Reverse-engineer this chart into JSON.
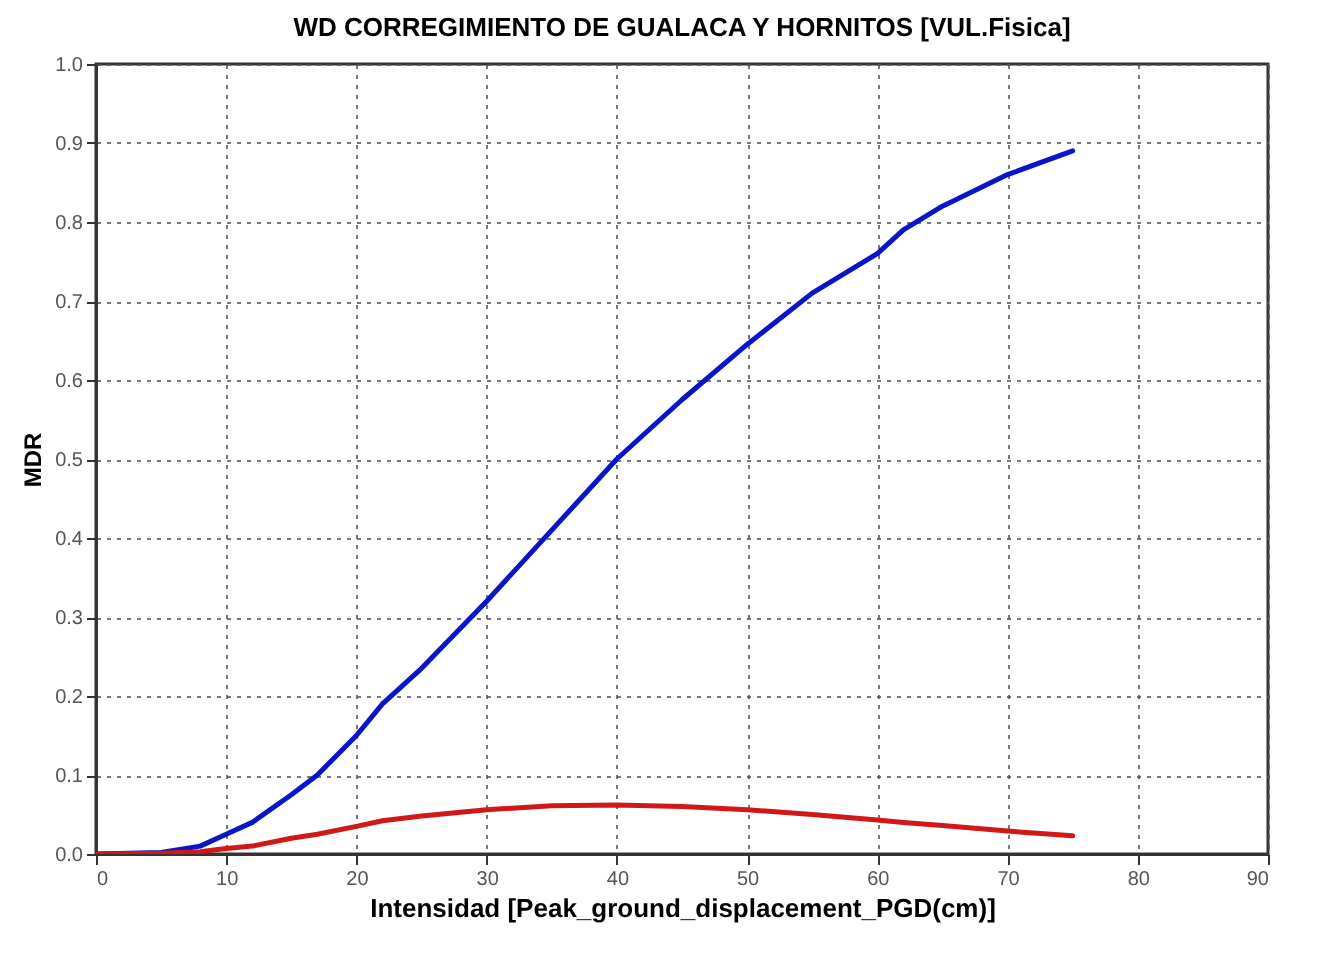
{
  "chart_data": {
    "type": "line",
    "title": "WD CORREGIMIENTO  DE GUALACA Y HORNITOS  [VUL.Fisica]",
    "xlabel": "Intensidad [Peak_ground_displacement_PGD(cm)]",
    "ylabel": "MDR",
    "x": [
      0,
      5,
      8,
      10,
      12,
      15,
      17,
      20,
      22,
      25,
      30,
      35,
      40,
      45,
      50,
      55,
      60,
      62,
      65,
      70,
      75
    ],
    "series": [
      {
        "color": "#0a14c8",
        "values": [
          0,
          0.002,
          0.01,
          0.025,
          0.04,
          0.075,
          0.1,
          0.15,
          0.19,
          0.235,
          0.32,
          0.41,
          0.5,
          0.575,
          0.645,
          0.71,
          0.76,
          0.79,
          0.82,
          0.86,
          0.89
        ]
      },
      {
        "color": "#d01818",
        "values": [
          0,
          0.001,
          0.003,
          0.007,
          0.01,
          0.02,
          0.025,
          0.035,
          0.042,
          0.048,
          0.056,
          0.061,
          0.062,
          0.06,
          0.056,
          0.05,
          0.043,
          0.04,
          0.036,
          0.029,
          0.023
        ]
      }
    ],
    "xlim": [
      0,
      90
    ],
    "xticks": [
      0,
      10,
      20,
      30,
      40,
      50,
      60,
      70,
      80,
      90
    ],
    "ylim": [
      0,
      1
    ],
    "yticks": [
      {
        "value": 0,
        "label": "0.0"
      },
      0.1,
      0.2,
      0.3,
      0.4,
      0.5,
      0.6,
      0.7,
      0.8,
      0.9,
      {
        "value": 1,
        "label": "1.0"
      }
    ],
    "grid": true,
    "line_style": "solid",
    "marker": "none"
  }
}
